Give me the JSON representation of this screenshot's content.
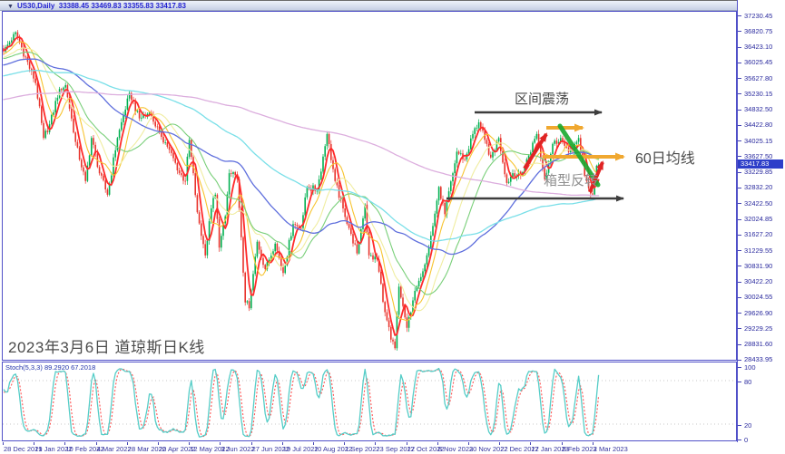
{
  "window": {
    "collapse_icon": "▼",
    "symbol_period": "US30,Daily",
    "ohlc_text": "33388.45 33469.83 33355.83 33417.83"
  },
  "chart": {
    "caption": "2023年3月6日 道琼斯日K线",
    "current_price": "33417.83",
    "price_axis_labels": [
      "37230.45",
      "36820.75",
      "36423.10",
      "36025.45",
      "35627.80",
      "35230.15",
      "34832.50",
      "34422.80",
      "34025.15",
      "33627.50",
      "33229.85",
      "32832.20",
      "32422.50",
      "32024.85",
      "31627.20",
      "31229.55",
      "30831.90",
      "30422.20",
      "30024.55",
      "29626.90",
      "29229.25",
      "28831.60",
      "28433.95"
    ],
    "date_axis_labels": [
      "28 Dec 2021",
      "19 Jan 2022",
      "10 Feb 2022",
      "4 Mar 2022",
      "28 Mar 2022",
      "20 Apr 2022",
      "12 May 2022",
      "3 Jun 2022",
      "27 Jun 2022",
      "19 Jul 2022",
      "10 Aug 2022",
      "1 Sep 2022",
      "23 Sep 2022",
      "17 Oct 2022",
      "8 Nov 2022",
      "30 Nov 2022",
      "22 Dec 2022",
      "17 Jan 2023",
      "8 Feb 2023",
      "2 Mar 2023"
    ],
    "annotations": {
      "range": "区间震荡",
      "ma60": "60日均线",
      "box_reversal": "箱型反转"
    },
    "annotation_colors": {
      "trend_arrow": "#3d3d3d",
      "box_arrow": "#f0a830",
      "hand_arrow": "#e02424",
      "trendline": "#18a92f",
      "label_dark": "#4a4a4a",
      "label_gray": "#8f8f8f"
    }
  },
  "indicator": {
    "label": "Stoch(5,3,3) 89.2920 67.2018",
    "axis_labels": [
      "100",
      "80",
      "20",
      "0"
    ]
  },
  "chart_data": {
    "type": "candlestick",
    "symbol": "US30",
    "timeframe": "Daily",
    "last_bar": {
      "open": 33388.45,
      "high": 33469.83,
      "low": 33355.83,
      "close": 33417.83
    },
    "bars": 299,
    "price_range": [
      28433.95,
      37230.45
    ],
    "x_first_date": "28 Dec 2021",
    "x_last_date": "2 Mar 2023",
    "close_anchors": [
      [
        0,
        36310
      ],
      [
        6,
        36800
      ],
      [
        16,
        35500
      ],
      [
        20,
        34100
      ],
      [
        23,
        34450
      ],
      [
        28,
        35350
      ],
      [
        31,
        35450
      ],
      [
        36,
        34000
      ],
      [
        41,
        33000
      ],
      [
        44,
        34100
      ],
      [
        48,
        33200
      ],
      [
        52,
        32650
      ],
      [
        57,
        34100
      ],
      [
        63,
        35250
      ],
      [
        68,
        34600
      ],
      [
        73,
        34750
      ],
      [
        78,
        34250
      ],
      [
        83,
        33800
      ],
      [
        88,
        33200
      ],
      [
        91,
        33000
      ],
      [
        93,
        34050
      ],
      [
        97,
        32200
      ],
      [
        101,
        31100
      ],
      [
        104,
        32300
      ],
      [
        106,
        32650
      ],
      [
        108,
        31300
      ],
      [
        111,
        32100
      ],
      [
        113,
        33200
      ],
      [
        117,
        33050
      ],
      [
        121,
        29900
      ],
      [
        123,
        29750
      ],
      [
        127,
        31450
      ],
      [
        131,
        30750
      ],
      [
        136,
        31400
      ],
      [
        140,
        30650
      ],
      [
        145,
        31900
      ],
      [
        149,
        31800
      ],
      [
        152,
        32850
      ],
      [
        157,
        32750
      ],
      [
        162,
        34200
      ],
      [
        166,
        33000
      ],
      [
        170,
        32300
      ],
      [
        174,
        31650
      ],
      [
        177,
        31150
      ],
      [
        181,
        32400
      ],
      [
        183,
        31100
      ],
      [
        187,
        31000
      ],
      [
        191,
        29650
      ],
      [
        194,
        28950
      ],
      [
        196,
        28730
      ],
      [
        198,
        30300
      ],
      [
        202,
        29250
      ],
      [
        205,
        29950
      ],
      [
        208,
        30450
      ],
      [
        212,
        31100
      ],
      [
        215,
        31850
      ],
      [
        218,
        32850
      ],
      [
        221,
        32150
      ],
      [
        225,
        33200
      ],
      [
        227,
        33750
      ],
      [
        231,
        33550
      ],
      [
        235,
        34200
      ],
      [
        238,
        34500
      ],
      [
        241,
        34050
      ],
      [
        244,
        33600
      ],
      [
        248,
        34100
      ],
      [
        252,
        32950
      ],
      [
        255,
        33200
      ],
      [
        259,
        33150
      ],
      [
        263,
        33650
      ],
      [
        267,
        34200
      ],
      [
        271,
        33050
      ],
      [
        275,
        33950
      ],
      [
        279,
        34100
      ],
      [
        281,
        33900
      ],
      [
        285,
        33750
      ],
      [
        288,
        34100
      ],
      [
        291,
        33130
      ],
      [
        293,
        32820
      ],
      [
        295,
        32655
      ],
      [
        296,
        33003
      ],
      [
        297,
        33390
      ],
      [
        298,
        33417.83
      ]
    ],
    "candle_colors": {
      "up": "#00b050",
      "down": "#e8332c"
    },
    "moving_averages": [
      {
        "period": 5,
        "color": "#ff2a2a",
        "width": 1.8
      },
      {
        "period": 10,
        "color": "#f7c431",
        "width": 1.1
      },
      {
        "period": 20,
        "color": "#f0eda0",
        "width": 1.1
      },
      {
        "period": 30,
        "color": "#79cf79",
        "width": 1.1
      },
      {
        "period": 60,
        "color": "#5f6fdd",
        "width": 1.3
      },
      {
        "period": 120,
        "color": "#79dfe8",
        "width": 1.3
      },
      {
        "period": 250,
        "color": "#dcaede",
        "width": 1.3
      }
    ],
    "stochastic": {
      "k": 5,
      "d": 3,
      "slowing": 3,
      "last_k": 89.292,
      "last_d": 67.2018,
      "k_color": "#55cdc7",
      "d_color": "#ff5555",
      "levels": [
        80,
        20
      ]
    }
  }
}
